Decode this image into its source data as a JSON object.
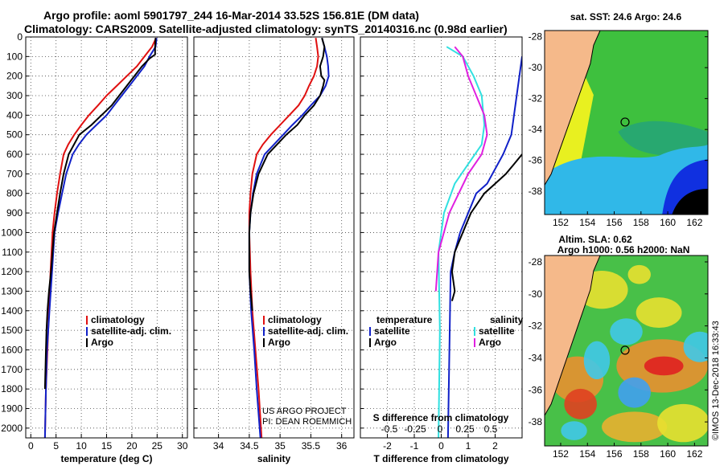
{
  "header": {
    "title_line1": "Argo profile: aoml 5901797_244 16-Mar-2014 33.52S 156.81E (DM data)",
    "title_line2": "Climatology: CARS2009. Satellite-adjusted climatology: synTS_20140316.nc (0.98d earlier)"
  },
  "colors": {
    "climatology": "#e01010",
    "satellite_adj": "#1020c8",
    "argo": "#000000",
    "satellite_salinity": "#30e0e0",
    "argo_salinity": "#e020e0",
    "land": "#f5b98a"
  },
  "credits": {
    "project_line1": "US ARGO PROJECT",
    "project_line2": "PI: DEAN ROEMMICH",
    "watermark": "©IMOS 13-Dec-2018 16:33:43"
  },
  "chart_data": [
    {
      "type": "line",
      "name": "temperature-profile",
      "xlabel": "temperature (deg C)",
      "ylim": [
        2050,
        0
      ],
      "xlim": [
        -1,
        31
      ],
      "xticks": [
        0,
        5,
        10,
        15,
        20,
        25,
        30
      ],
      "yticks": [
        0,
        100,
        200,
        300,
        400,
        500,
        600,
        700,
        800,
        900,
        1000,
        1100,
        1200,
        1300,
        1400,
        1500,
        1600,
        1700,
        1800,
        1900,
        2000
      ],
      "grid": true,
      "legend": {
        "position": "lower-middle",
        "items": [
          "climatology",
          "satellite-adj. clim.",
          "Argo"
        ]
      },
      "series": [
        {
          "name": "climatology",
          "color_key": "climatology",
          "x": [
            24.8,
            24.0,
            22.5,
            21.0,
            19.0,
            17.0,
            15.0,
            13.3,
            11.5,
            10.0,
            8.6,
            7.4,
            6.5,
            5.8,
            5.2,
            4.7,
            4.3,
            3.9,
            3.6,
            3.3,
            3.0,
            2.8
          ],
          "y": [
            5,
            50,
            100,
            150,
            200,
            250,
            300,
            350,
            400,
            450,
            500,
            550,
            600,
            700,
            800,
            900,
            1000,
            1200,
            1400,
            1600,
            1800,
            2050
          ]
        },
        {
          "name": "satellite-adj. clim.",
          "color_key": "satellite_adj",
          "x": [
            24.9,
            24.7,
            23.5,
            22.5,
            21.0,
            19.5,
            18.0,
            16.5,
            15.0,
            13.0,
            11.0,
            9.5,
            8.3,
            7.0,
            6.2,
            5.4,
            4.7,
            4.2,
            3.7,
            3.2,
            3.0,
            2.8
          ],
          "y": [
            5,
            50,
            100,
            150,
            200,
            250,
            300,
            350,
            400,
            450,
            500,
            550,
            600,
            700,
            800,
            900,
            1000,
            1200,
            1400,
            1600,
            1800,
            2050
          ]
        },
        {
          "name": "Argo",
          "color_key": "argo",
          "x": [
            24.7,
            24.6,
            24.6,
            23.5,
            22.0,
            20.5,
            19.0,
            17.5,
            16.0,
            14.0,
            12.0,
            9.6,
            7.5,
            6.5,
            5.8,
            5.2,
            4.6,
            4.0,
            3.6,
            3.3,
            3.1,
            3.0,
            2.8
          ],
          "y": [
            5,
            50,
            90,
            110,
            150,
            200,
            250,
            300,
            350,
            400,
            450,
            500,
            600,
            700,
            800,
            900,
            1000,
            1200,
            1300,
            1400,
            1500,
            1600,
            1800
          ]
        }
      ]
    },
    {
      "type": "line",
      "name": "salinity-profile",
      "xlabel": "salinity",
      "ylim": [
        2050,
        0
      ],
      "xlim": [
        33.6,
        36.2
      ],
      "xticks": [
        34,
        34.5,
        35,
        35.5,
        36
      ],
      "grid": true,
      "legend": {
        "position": "lower-middle",
        "items": [
          "climatology",
          "satellite-adj. clim.",
          "Argo"
        ]
      },
      "series": [
        {
          "name": "climatology",
          "color_key": "climatology",
          "x": [
            35.58,
            35.6,
            35.62,
            35.6,
            35.55,
            35.47,
            35.4,
            35.3,
            35.15,
            35.0,
            34.85,
            34.72,
            34.62,
            34.55,
            34.52,
            34.5,
            34.5,
            34.52,
            34.55,
            34.6,
            34.65,
            34.7
          ],
          "y": [
            5,
            50,
            100,
            150,
            200,
            250,
            300,
            350,
            400,
            450,
            500,
            550,
            600,
            700,
            800,
            900,
            1000,
            1200,
            1400,
            1600,
            1800,
            2050
          ]
        },
        {
          "name": "satellite-adj. clim.",
          "color_key": "satellite_adj",
          "x": [
            35.68,
            35.72,
            35.76,
            35.78,
            35.79,
            35.74,
            35.65,
            35.5,
            35.36,
            35.2,
            35.05,
            34.9,
            34.75,
            34.62,
            34.56,
            34.52,
            34.5,
            34.5,
            34.53,
            34.58,
            34.62,
            34.68
          ],
          "y": [
            5,
            50,
            100,
            150,
            200,
            250,
            300,
            350,
            400,
            450,
            500,
            550,
            600,
            700,
            800,
            900,
            1000,
            1200,
            1400,
            1600,
            1800,
            2050
          ]
        },
        {
          "name": "Argo",
          "color_key": "argo",
          "x": [
            35.68,
            35.72,
            35.7,
            35.65,
            35.67,
            35.72,
            35.7,
            35.65,
            35.55,
            35.4,
            35.28,
            35.1,
            34.95,
            34.8,
            34.65,
            34.57,
            34.52,
            34.5,
            34.5,
            34.52,
            34.55
          ],
          "y": [
            5,
            50,
            100,
            150,
            200,
            220,
            250,
            300,
            350,
            400,
            450,
            500,
            550,
            600,
            700,
            800,
            900,
            1000,
            1200,
            1300,
            1400
          ]
        }
      ]
    },
    {
      "type": "line",
      "name": "difference-profile",
      "xlabel": "T difference from climatology",
      "sublabel": "S difference from climatology",
      "ylim": [
        2050,
        0
      ],
      "xlim": [
        -3,
        3
      ],
      "xticks": [
        -2,
        -1,
        0,
        1,
        2
      ],
      "secondary_xticks": [
        "-0.5",
        "-0.25",
        "0",
        "0.25",
        "0.5"
      ],
      "grid": true,
      "legend_temperature": {
        "heading": "temperature",
        "items": [
          "satellite",
          "Argo"
        ]
      },
      "legend_salinity": {
        "heading": "salinity",
        "items": [
          "satellite",
          "Argo"
        ]
      },
      "series": [
        {
          "name": "temperature satellite",
          "color_key": "satellite_adj",
          "x": [
            3.0,
            2.8,
            2.6,
            2.3,
            1.7,
            1.3,
            1.0,
            0.7,
            0.5,
            0.35,
            0.25
          ],
          "y": [
            100,
            300,
            500,
            600,
            750,
            800,
            900,
            1000,
            1100,
            1200,
            2050
          ]
        },
        {
          "name": "temperature Argo",
          "color_key": "argo",
          "x": [
            3.0,
            2.7,
            2.4,
            2.0,
            1.6,
            1.1,
            0.8,
            0.5,
            0.4,
            0.5,
            0.4
          ],
          "y": [
            600,
            650,
            700,
            750,
            800,
            900,
            1000,
            1100,
            1200,
            1300,
            1350
          ]
        },
        {
          "name": "salinity satellite",
          "color_key": "satellite_salinity",
          "x": [
            0.2,
            0.8,
            1.2,
            1.5,
            1.6,
            1.5,
            1.0,
            0.5,
            0.1,
            -0.1,
            -0.05,
            -0.1
          ],
          "y": [
            50,
            100,
            200,
            300,
            450,
            550,
            650,
            750,
            900,
            1100,
            1500,
            2050
          ]
        },
        {
          "name": "salinity Argo",
          "color_key": "argo_salinity",
          "x": [
            0.5,
            0.8,
            1.0,
            1.3,
            1.6,
            1.7,
            1.5,
            1.0,
            0.3,
            -0.1,
            -0.2
          ],
          "y": [
            50,
            100,
            200,
            300,
            400,
            500,
            600,
            700,
            900,
            1100,
            1300
          ]
        }
      ]
    },
    {
      "type": "heatmap",
      "name": "sst-map",
      "title": "sat. SST: 24.6 Argo: 24.6",
      "xticks": [
        152,
        154,
        156,
        158,
        160,
        162
      ],
      "yticks": [
        -28,
        -30,
        -32,
        -34,
        -36,
        -38
      ],
      "xlim": [
        150.8,
        163.0
      ],
      "ylim": [
        -39.5,
        -27.6
      ],
      "profile_location": [
        156.81,
        -33.52
      ]
    },
    {
      "type": "heatmap",
      "name": "sla-map",
      "title_line1": "Altim. SLA: 0.62",
      "title_line2": "Argo h1000: 0.56 h2000: NaN",
      "xticks": [
        152,
        154,
        156,
        158,
        160,
        162
      ],
      "yticks": [
        -28,
        -30,
        -32,
        -34,
        -36,
        -38
      ],
      "xlim": [
        150.8,
        163.0
      ],
      "ylim": [
        -39.5,
        -27.6
      ],
      "profile_location": [
        156.81,
        -33.52
      ]
    }
  ]
}
